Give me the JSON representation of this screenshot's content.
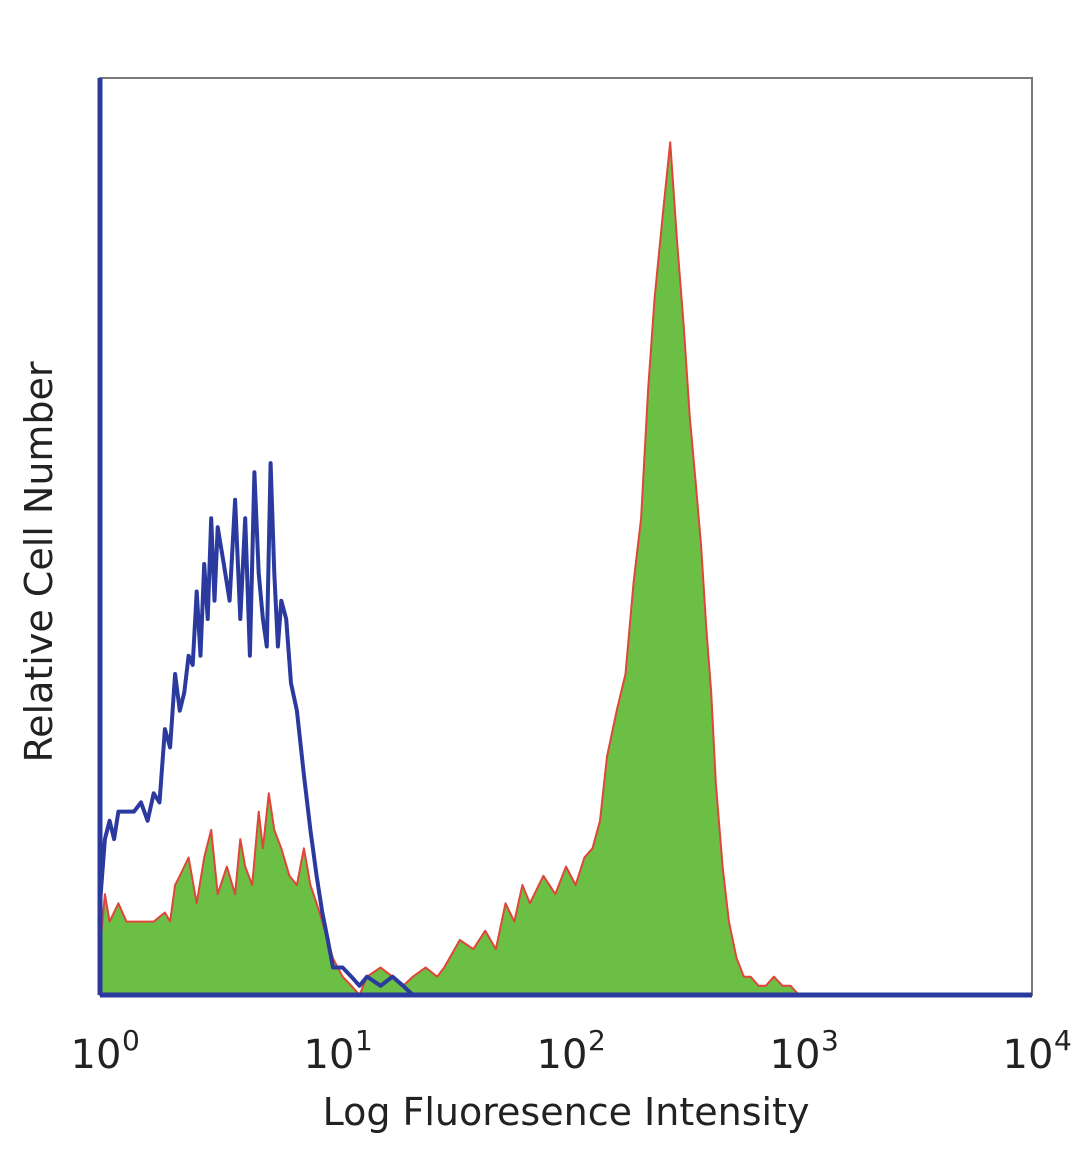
{
  "chart_data": {
    "type": "area",
    "title": "",
    "xlabel": "Log Fluoresence Intensity",
    "ylabel": "Relative Cell Number",
    "x_scale": "log",
    "xlim": [
      1,
      10000
    ],
    "ylim": [
      0,
      100
    ],
    "grid": false,
    "legend": "none",
    "x_ticks": [
      {
        "base": "10",
        "exp": "0"
      },
      {
        "base": "10",
        "exp": "1"
      },
      {
        "base": "10",
        "exp": "2"
      },
      {
        "base": "10",
        "exp": "3"
      },
      {
        "base": "10",
        "exp": "4"
      }
    ],
    "colors": {
      "isotype_line": "#2b3a9e",
      "stained_fill": "#6cbf45",
      "stained_line": "#e0453a",
      "frame": "#2b3a9e"
    },
    "series": [
      {
        "style": "outline",
        "color": "#2b3a9e",
        "x": [
          1,
          1.05,
          1.1,
          1.15,
          1.2,
          1.3,
          1.4,
          1.5,
          1.6,
          1.7,
          1.8,
          1.9,
          2.0,
          2.1,
          2.2,
          2.3,
          2.4,
          2.5,
          2.6,
          2.7,
          2.8,
          2.9,
          3.0,
          3.1,
          3.2,
          3.4,
          3.6,
          3.8,
          4.0,
          4.2,
          4.4,
          4.6,
          4.8,
          5.0,
          5.2,
          5.4,
          5.6,
          5.8,
          6.0,
          6.3,
          6.6,
          7.0,
          7.5,
          8.0,
          8.5,
          9.0,
          9.5,
          10.0,
          11.0,
          12.0,
          13.0,
          14.0,
          16.0,
          18.0,
          20.0,
          22.0
        ],
        "y": [
          10,
          17,
          19,
          17,
          20,
          20,
          20,
          21,
          19,
          22,
          21,
          29,
          27,
          35,
          31,
          33,
          37,
          36,
          44,
          37,
          47,
          41,
          52,
          43,
          51,
          47,
          43,
          54,
          41,
          52,
          37,
          57,
          46,
          41,
          38,
          58,
          46,
          38,
          43,
          41,
          34,
          31,
          24,
          18,
          13,
          9,
          6,
          3,
          3,
          2,
          1,
          2,
          1,
          2,
          1,
          0
        ]
      },
      {
        "style": "filled",
        "color": "#6cbf45",
        "edge_color": "#e0453a",
        "x": [
          1,
          1.05,
          1.1,
          1.2,
          1.3,
          1.5,
          1.7,
          1.9,
          2.0,
          2.1,
          2.2,
          2.4,
          2.6,
          2.8,
          3.0,
          3.2,
          3.5,
          3.8,
          4.0,
          4.2,
          4.5,
          4.8,
          5.0,
          5.3,
          5.6,
          6.0,
          6.5,
          7.0,
          7.5,
          8.0,
          8.5,
          9.0,
          10.0,
          11.0,
          12.0,
          13.0,
          14.0,
          16.0,
          18.0,
          20.0,
          22.0,
          25.0,
          28.0,
          30.0,
          35.0,
          40.0,
          45.0,
          50.0,
          55.0,
          60.0,
          65.0,
          70.0,
          80.0,
          90.0,
          100.0,
          110.0,
          120.0,
          130.0,
          140.0,
          150.0,
          165.0,
          180.0,
          195.0,
          210.0,
          225.0,
          240.0,
          260.0,
          280.0,
          300.0,
          320.0,
          340.0,
          360.0,
          380.0,
          400.0,
          420.0,
          440.0,
          470.0,
          500.0,
          540.0,
          580.0,
          620.0,
          670.0,
          720.0,
          780.0,
          850.0,
          920.0,
          1000.0,
          1100.0,
          1200.0,
          1300.0,
          1400.0,
          1500.0
        ],
        "y": [
          5,
          11,
          8,
          10,
          8,
          8,
          8,
          9,
          8,
          12,
          13,
          15,
          10,
          15,
          18,
          11,
          14,
          11,
          17,
          14,
          12,
          20,
          16,
          22,
          18,
          16,
          13,
          12,
          16,
          12,
          10,
          8,
          4,
          2,
          1,
          0,
          2,
          3,
          2,
          1,
          2,
          3,
          2,
          3,
          6,
          5,
          7,
          5,
          10,
          8,
          12,
          10,
          13,
          11,
          14,
          12,
          15,
          16,
          19,
          26,
          31,
          35,
          45,
          52,
          66,
          76,
          85,
          93,
          82,
          73,
          63,
          56,
          49,
          40,
          33,
          23,
          14,
          8,
          4,
          2,
          2,
          1,
          1,
          2,
          1,
          1,
          0,
          0,
          0,
          0,
          0,
          0
        ]
      }
    ]
  }
}
